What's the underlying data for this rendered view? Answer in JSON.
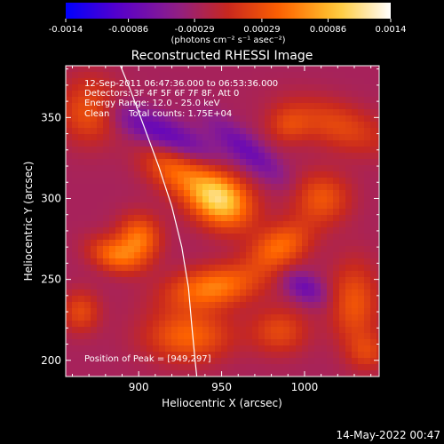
{
  "chart_data": {
    "type": "heatmap",
    "title": "Reconstructed RHESSI Image",
    "xlabel": "Heliocentric X (arcsec)",
    "ylabel": "Heliocentric Y (arcsec)",
    "xlim": [
      856,
      1045
    ],
    "ylim": [
      190,
      382
    ],
    "x_ticks": [
      900,
      950,
      1000
    ],
    "y_ticks": [
      200,
      250,
      300,
      350
    ],
    "colorbar": {
      "range": [
        -0.0014,
        0.0014
      ],
      "tick_values": [
        -0.0014,
        -0.00086,
        -0.00029,
        0.00029,
        0.00086,
        0.0014
      ],
      "tick_labels": [
        "-0.0014",
        "-0.00086",
        "-0.00029",
        "0.00029",
        "0.00086",
        "0.0014"
      ],
      "colors": [
        "#0000ff",
        "#5a00c8",
        "#8c1e8c",
        "#c8281e",
        "#ff6400",
        "#ffc832",
        "#ffffff"
      ]
    },
    "units_label": "(photons cm⁻² s⁻¹ asec⁻²)",
    "annotations": {
      "time_range": "12-Sep-2011 06:47:36.000 to 06:53:36.000",
      "detectors": "Detectors: 3F 4F 5F 6F 7F 8F, Att 0",
      "energy_range": "Energy Range: 12.0 - 25.0 keV",
      "method": "Clean",
      "total_counts": "Total counts: 1.75E+04",
      "peak_position": "Position of Peak = [949,297]"
    },
    "peak": [
      949,
      297
    ],
    "sources": [
      {
        "x": 948,
        "y": 300,
        "sx": 15,
        "sy": 11,
        "angle": -35,
        "amp": 0.00135
      },
      {
        "x": 920,
        "y": 318,
        "sx": 14,
        "sy": 9,
        "angle": -30,
        "amp": 0.0006
      },
      {
        "x": 900,
        "y": 275,
        "sx": 9,
        "sy": 10,
        "angle": 0,
        "amp": 0.0008
      },
      {
        "x": 885,
        "y": 265,
        "sx": 11,
        "sy": 7,
        "angle": -20,
        "amp": 0.0007
      },
      {
        "x": 945,
        "y": 245,
        "sx": 20,
        "sy": 9,
        "angle": 10,
        "amp": 0.00085
      },
      {
        "x": 985,
        "y": 270,
        "sx": 14,
        "sy": 9,
        "angle": 30,
        "amp": 0.00075
      },
      {
        "x": 1010,
        "y": 300,
        "sx": 12,
        "sy": 11,
        "angle": 0,
        "amp": 0.0006
      },
      {
        "x": 930,
        "y": 215,
        "sx": 18,
        "sy": 11,
        "angle": 0,
        "amp": 0.0007
      },
      {
        "x": 985,
        "y": 218,
        "sx": 12,
        "sy": 10,
        "angle": 0,
        "amp": 0.0005
      },
      {
        "x": 1030,
        "y": 235,
        "sx": 10,
        "sy": 18,
        "angle": 0,
        "amp": 0.0006
      },
      {
        "x": 870,
        "y": 355,
        "sx": 12,
        "sy": 14,
        "angle": 0,
        "amp": 0.0006
      },
      {
        "x": 1020,
        "y": 345,
        "sx": 22,
        "sy": 10,
        "angle": -20,
        "amp": 0.0005
      },
      {
        "x": 990,
        "y": 345,
        "sx": 9,
        "sy": 8,
        "angle": 0,
        "amp": 0.0004
      },
      {
        "x": 865,
        "y": 230,
        "sx": 8,
        "sy": 9,
        "angle": 0,
        "amp": 0.0005
      },
      {
        "x": 1038,
        "y": 205,
        "sx": 8,
        "sy": 8,
        "angle": 0,
        "amp": 0.0004
      },
      {
        "x": 915,
        "y": 340,
        "sx": 25,
        "sy": 7,
        "angle": -25,
        "amp": -0.0006
      },
      {
        "x": 965,
        "y": 330,
        "sx": 20,
        "sy": 6,
        "angle": -40,
        "amp": -0.0005
      },
      {
        "x": 1000,
        "y": 245,
        "sx": 10,
        "sy": 6,
        "angle": -30,
        "amp": -0.0005
      }
    ],
    "limb_curve": [
      [
        889,
        382
      ],
      [
        895,
        367
      ],
      [
        903,
        345
      ],
      [
        912,
        320
      ],
      [
        920,
        295
      ],
      [
        926,
        270
      ],
      [
        930,
        245
      ],
      [
        932,
        222
      ],
      [
        934,
        200
      ],
      [
        935,
        190
      ]
    ]
  },
  "footer": {
    "timestamp": "14-May-2022 00:47"
  }
}
